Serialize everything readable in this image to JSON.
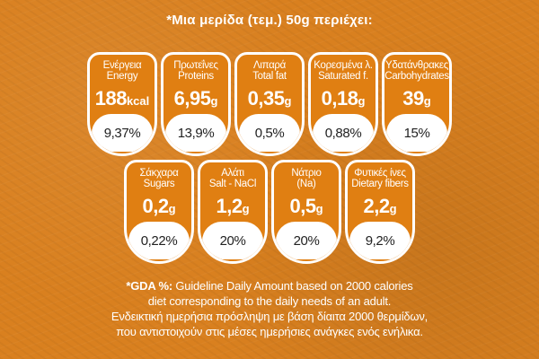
{
  "header": "*Μια μερίδα (τεμ.) 50g περιέχει:",
  "row1": [
    {
      "label_gr": "Ενέργεια",
      "label_en": "Energy",
      "value": "188",
      "unit": "kcal",
      "pct": "9,37%"
    },
    {
      "label_gr": "Πρωτεΐνες",
      "label_en": "Proteins",
      "value": "6,95",
      "unit": "g",
      "pct": "13,9%"
    },
    {
      "label_gr": "Λιπαρά",
      "label_en": "Total fat",
      "value": "0,35",
      "unit": "g",
      "pct": "0,5%"
    },
    {
      "label_gr": "Κορεσμένα λ.",
      "label_en": "Saturated f.",
      "value": "0,18",
      "unit": "g",
      "pct": "0,88%"
    },
    {
      "label_gr": "Υδατάνθρακες",
      "label_en": "Carbohydrates",
      "value": "39",
      "unit": "g",
      "pct": "15%"
    }
  ],
  "row2": [
    {
      "label_gr": "Σάκχαρα",
      "label_en": "Sugars",
      "value": "0,2",
      "unit": "g",
      "pct": "0,22%"
    },
    {
      "label_gr": "Αλάτι",
      "label_en": "Salt - NaCl",
      "value": "1,2",
      "unit": "g",
      "pct": "20%"
    },
    {
      "label_gr": "Νάτριο",
      "label_en": "(Na)",
      "value": "0,5",
      "unit": "g",
      "pct": "20%"
    },
    {
      "label_gr": "Φυτικές ίνες",
      "label_en": "Dietary fibers",
      "value": "2,2",
      "unit": "g",
      "pct": "9,2%"
    }
  ],
  "footnote": {
    "gda_label": "*GDA %:",
    "line1": " Guideline Daily Amount based on 2000 calories",
    "line2": "diet corresponding to the daily needs of an adult.",
    "line3": "Ενδεικτική ημερήσια πρόσληψη με βάση δίαιτα 2000 θερμίδων,",
    "line4": "που αντιστοιχούν στις μέσες ημερήσιες ανάγκες ενός ενήλικα."
  },
  "colors": {
    "background": "#d9801f",
    "card": "#e07f12",
    "border": "#ffffff",
    "pct_text": "#222222"
  }
}
